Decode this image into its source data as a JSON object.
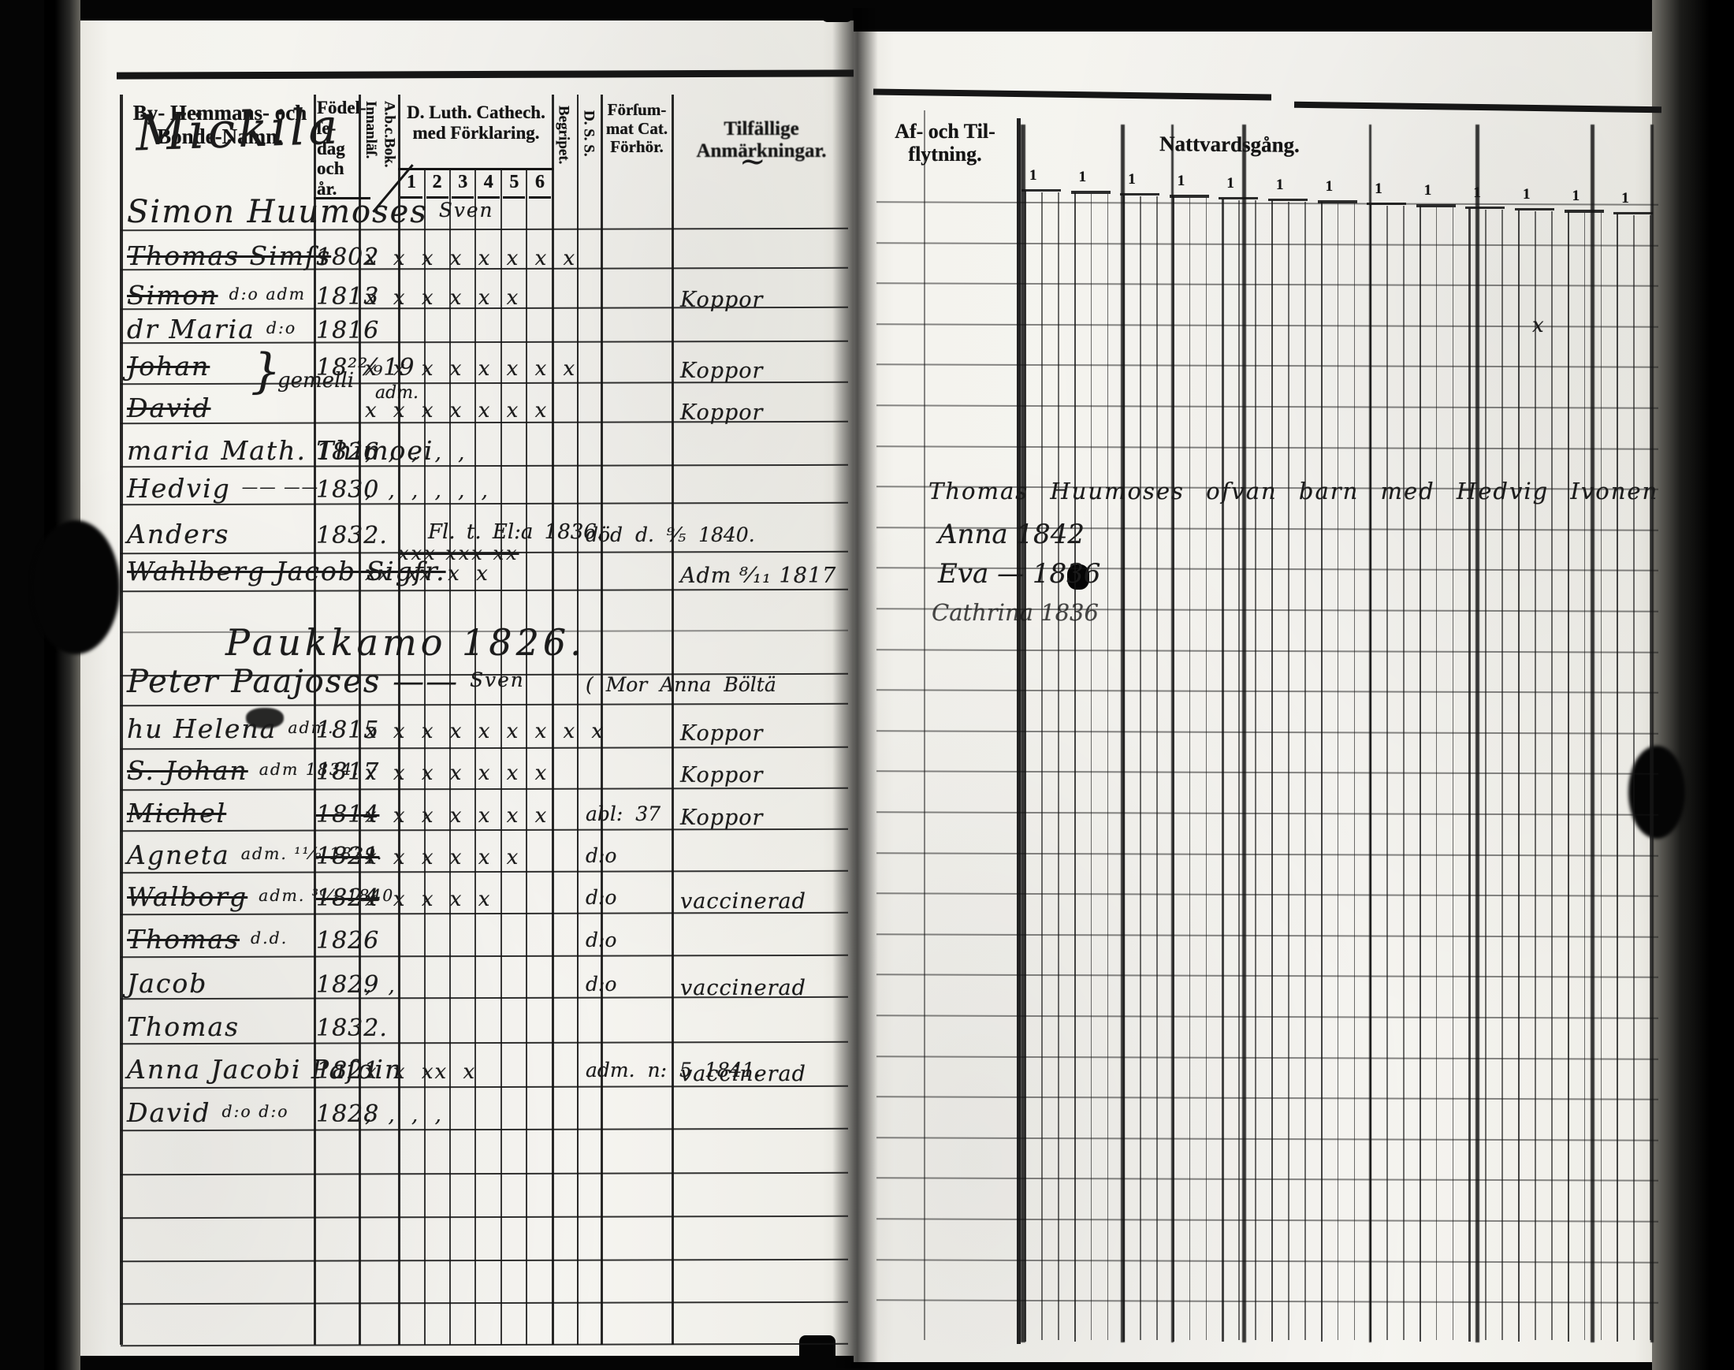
{
  "book": {
    "left_page": {
      "header": {
        "col_names": "By- Hemmans- och\nBonde-Namn.",
        "col_birth": "Födel-\nſe-dag\noch år.",
        "col_abc": "A.b.c.Bok.\nInnanläſ.",
        "col_cat": "D. Luth. Cathech.\nmed Förklaring.",
        "cat_numbers": [
          "1",
          "2",
          "3",
          "4",
          "5",
          "6"
        ],
        "col_begripet": "Begripet.",
        "col_dss": "D. S. S.",
        "col_forsummat": "Förſum-\nmat Cat.\nFörhör.",
        "col_anm": "Tilfällige Anmärkningar.",
        "anm_squiggle": "~"
      },
      "village_heading": "Mickila",
      "section_heading": "Paukkamo 1826.",
      "floating_notes": [
        "}",
        "gemelli",
        "adm."
      ],
      "rows": [
        {
          "name": "Simon Huumoses",
          "suffix": "Sven",
          "head": true,
          "underline": true
        },
        {
          "name": "Thomas Simſs",
          "struck": true,
          "birth": "1802",
          "marks": "x x x x x x x x"
        },
        {
          "name": "Simon",
          "suffix": "d:o  adm",
          "struck": true,
          "birth": "1813",
          "marks": "x x x x x x",
          "remark": "Koppor"
        },
        {
          "name": "dr Maria",
          "suffix": "d:o",
          "birth": "1816"
        },
        {
          "name": "Johan",
          "struck": true,
          "birth": "18²²⁄₉19",
          "marks": "x x x x x x x x",
          "remark": "Koppor"
        },
        {
          "name": "David",
          "struck": true,
          "marks": "x x x x x x x",
          "remark": "Koppor"
        },
        {
          "name": "maria Math. Thimoei",
          "birth": "1826",
          "marks": ", , , , ,"
        },
        {
          "name": "Hedvig",
          "suffix": "——   ——",
          "birth": "1830",
          "marks": ", , , , , ,"
        },
        {
          "name": "Anders",
          "birth": "1832.",
          "cat_note": "Fl. t. El:a 1836.",
          "marks2": "xxx xxx xx",
          "exam_note": "död d. ⁹⁄₅ 1840."
        },
        {
          "name": "Wahlberg Jacob Sigfr.",
          "struck": true,
          "marks": "xx xx x x",
          "remark": "Adm ⁸⁄₁₁ 1817"
        },
        {
          "name": "Peter Paajoses ——",
          "suffix": "Sven",
          "head": true,
          "underline": true,
          "exam_note": "( Mor  Anna  Böltä"
        },
        {
          "name": "hu Helena",
          "suffix": "adm.",
          "birth": "1815",
          "marks": "x x x x x x x x x",
          "remark": "Koppor"
        },
        {
          "name": "S. Johan",
          "suffix": "adm 1834.",
          "struck": true,
          "birth": "1817",
          "marks": "x x x x x x x",
          "remark": "Koppor"
        },
        {
          "name": "Michel",
          "struck": true,
          "birth": "1814",
          "birth_struck": true,
          "marks": "x x x x x x x",
          "exam_note": "abl: 37",
          "remark": "Koppor"
        },
        {
          "name": "Agneta",
          "suffix": "adm. ¹¹⁄₉ 1839.",
          "birth": "1821",
          "birth_struck": true,
          "marks": "x x x x x x",
          "exam_note": "d:o"
        },
        {
          "name": "Walborg",
          "suffix": "adm. ³⁰⁄₁ 1840",
          "struck": true,
          "birth": "1824",
          "birth_struck": true,
          "marks": "x x x x x",
          "exam_note": "d:o",
          "remark": "vaccinerad"
        },
        {
          "name": "Thomas",
          "suffix": "d.d.",
          "struck": true,
          "birth": "1826",
          "exam_note": "d:o"
        },
        {
          "name": "Jacob",
          "birth": "1829",
          "marks": ", ,",
          "exam_note": "d:o",
          "remark": "vaccinerad"
        },
        {
          "name": "Thomas",
          "birth": "1832."
        },
        {
          "name": "Anna Jacobi Paſoin",
          "birth": "1821",
          "marks": "x x xx x",
          "exam_note": "adm. n: 5 1841.",
          "remark": "vaccinerad"
        },
        {
          "name": "David",
          "suffix": "d:o  d:o",
          "birth": "1828",
          "marks": ", , , ,"
        }
      ]
    },
    "right_page": {
      "header": {
        "col_flytt": "Af- och Til-\nflytning.",
        "col_natt": "Nattvardsgång.",
        "tick": "1"
      },
      "notes": [
        "Thomas Huumoses ofvan barn med Hedvig Ivonen",
        "Anna  1842",
        "Eva —  1836",
        "Cathrina  1836"
      ],
      "stray_mark": "x"
    }
  }
}
